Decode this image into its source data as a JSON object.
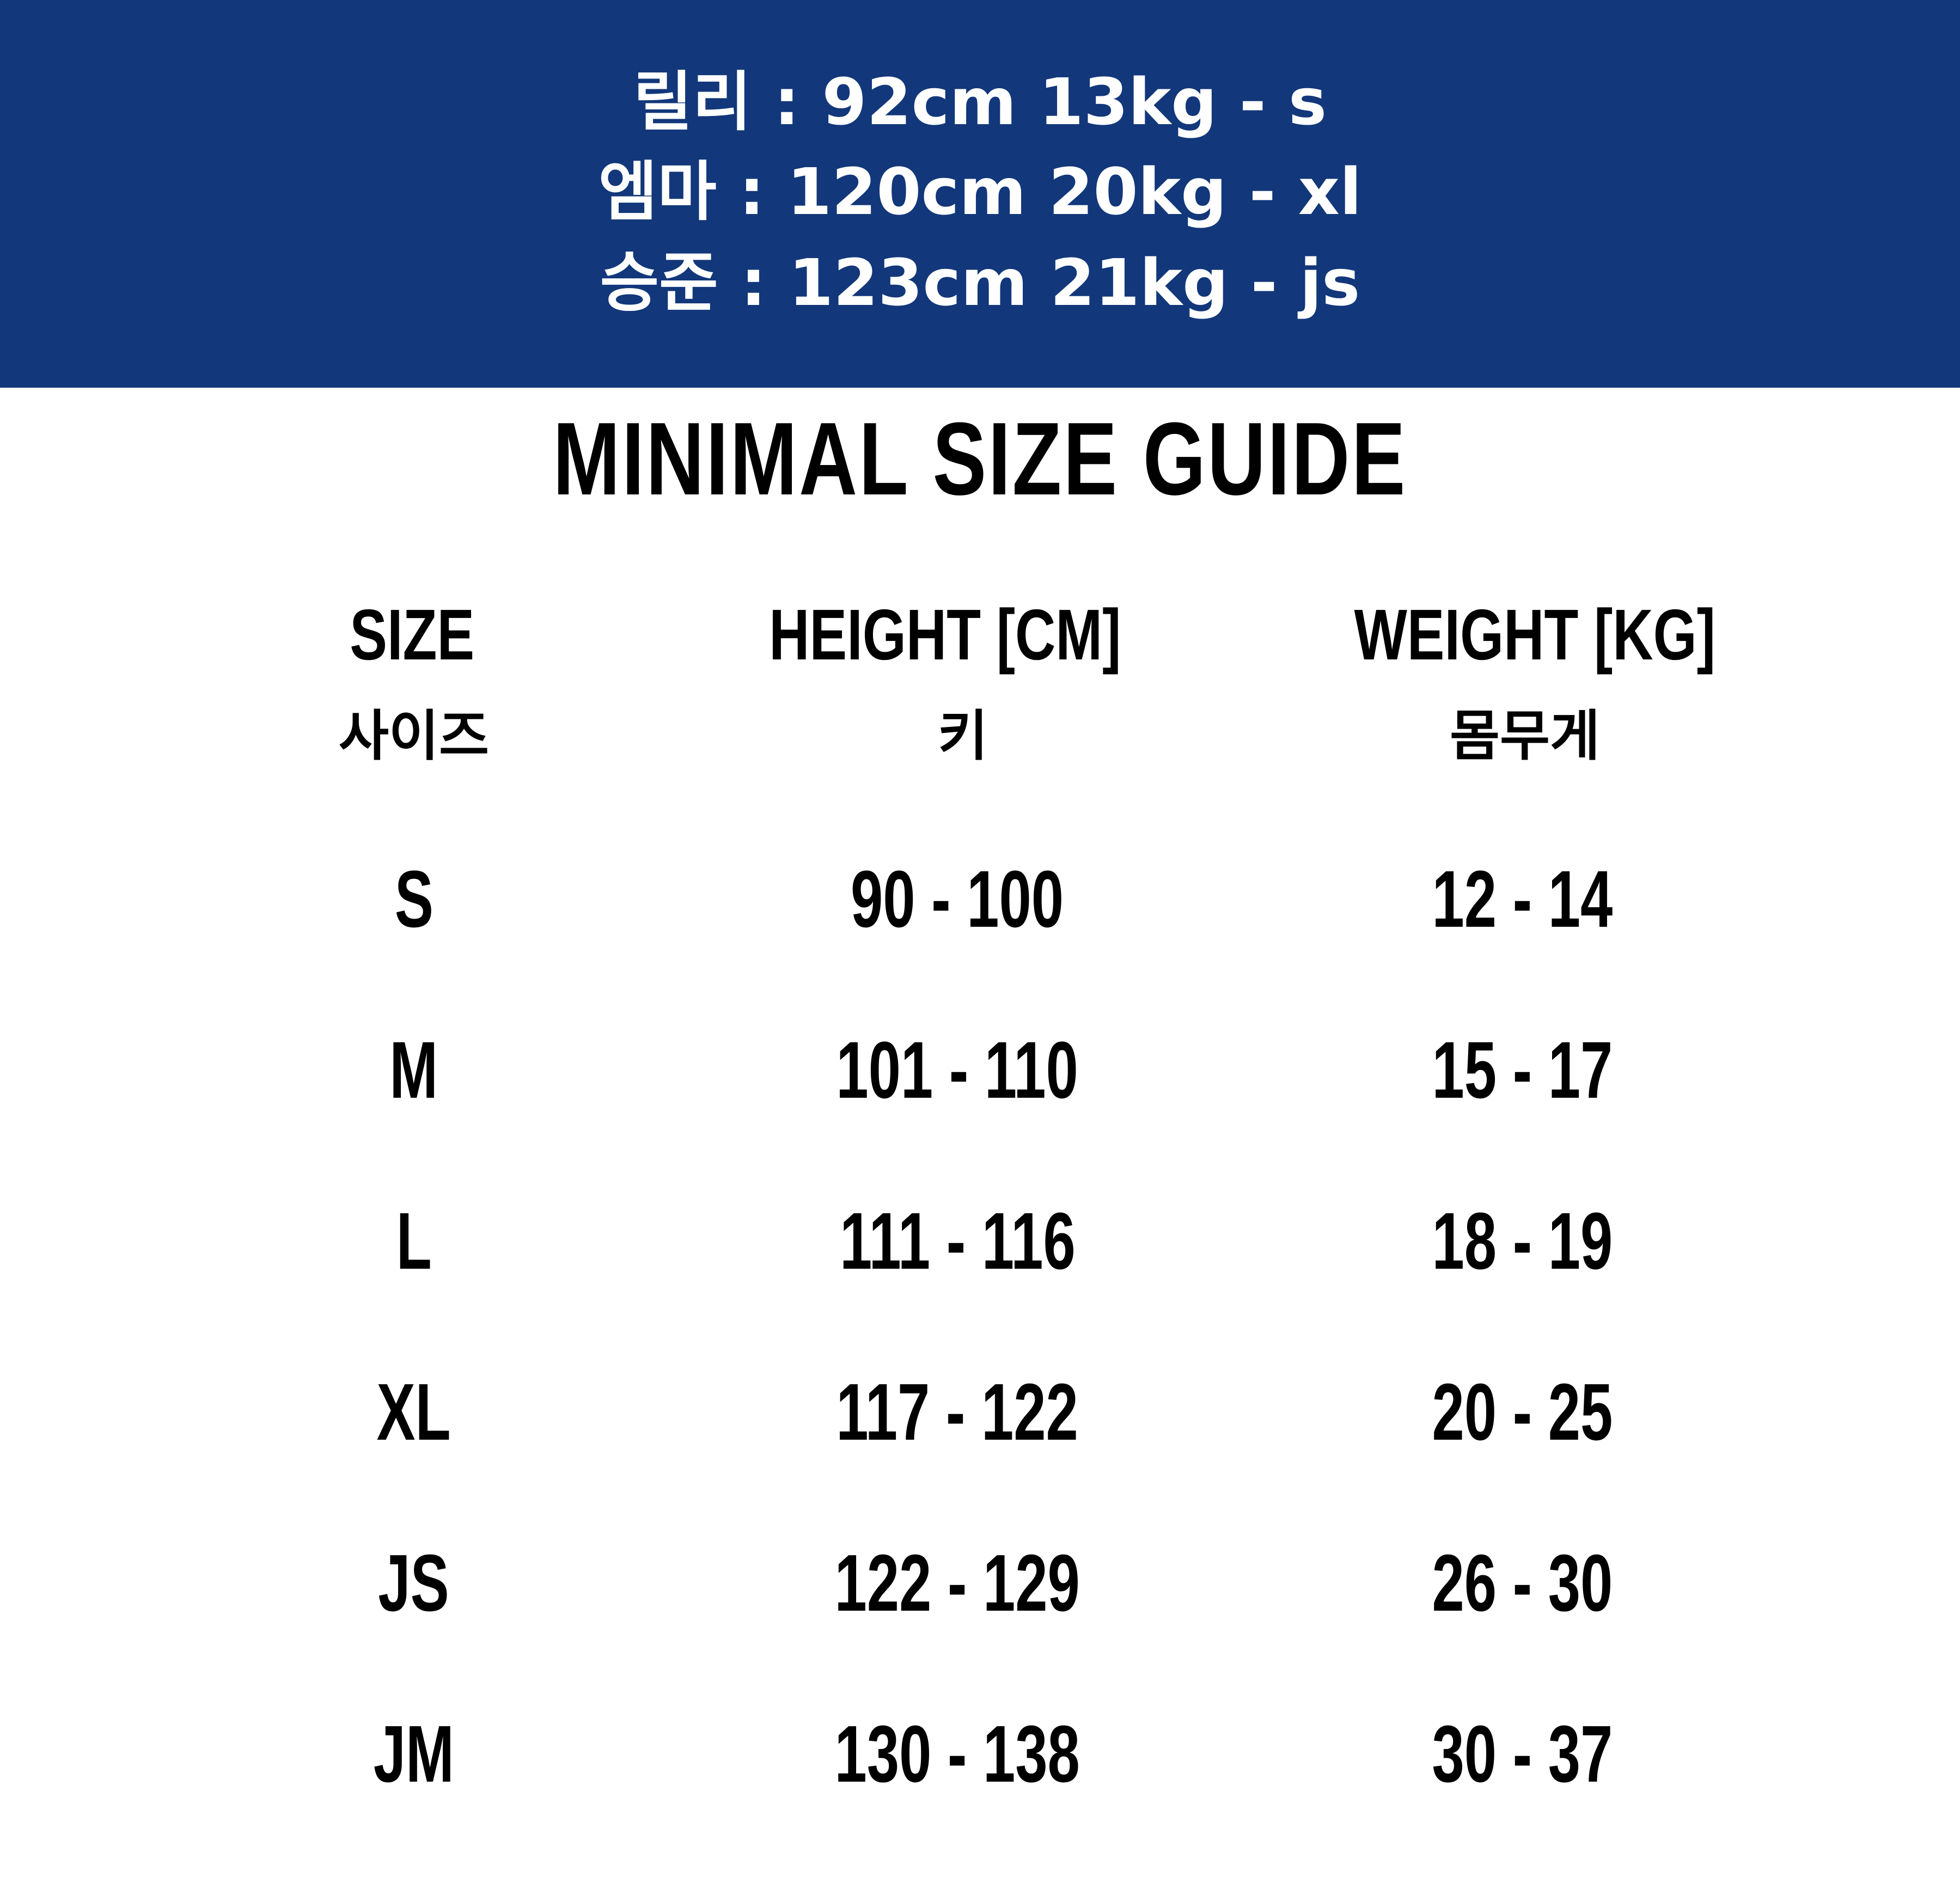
{
  "banner": {
    "background": "#12377a",
    "lines": [
      "릴리 : 92cm 13kg - s",
      "엠마 : 120cm 20kg - xl",
      "승준  : 123cm 21kg - js"
    ]
  },
  "title": "MINIMAL SIZE GUIDE",
  "table": {
    "headers": [
      {
        "en": "SIZE",
        "ko": "사이즈"
      },
      {
        "en": "HEIGHT [CM]",
        "ko": "키"
      },
      {
        "en": "WEIGHT [KG]",
        "ko": "몸무게"
      }
    ],
    "rows": [
      [
        "S",
        "90 - 100",
        "12 - 14"
      ],
      [
        "M",
        "101 - 110",
        "15 - 17"
      ],
      [
        "L",
        "111 - 116",
        "18 - 19"
      ],
      [
        "XL",
        "117 - 122",
        "20 - 25"
      ],
      [
        "JS",
        "122 - 129",
        "26 - 30"
      ],
      [
        "JM",
        "130 - 138",
        "30 - 37"
      ]
    ]
  }
}
